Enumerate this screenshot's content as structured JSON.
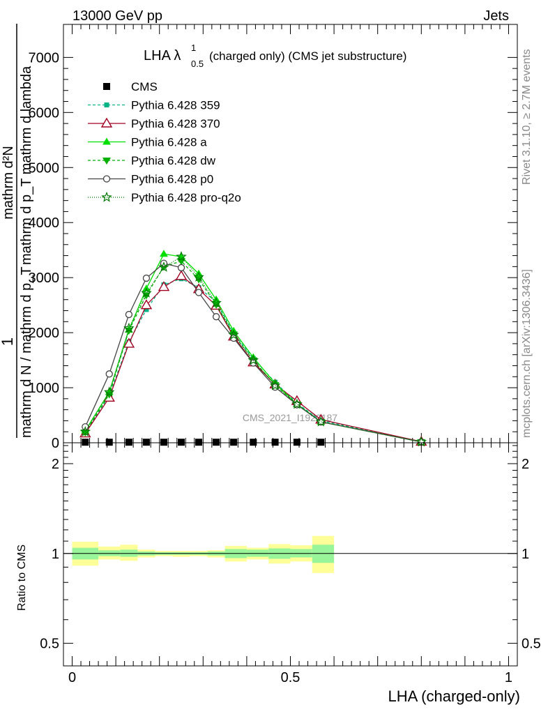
{
  "header": {
    "left": "13000 GeV pp",
    "right": "Jets"
  },
  "side": {
    "rivet": "Rivet 3.1.10, ≥ 2.7M events",
    "site": "mcplots.cern.ch [arXiv:1306.3436]"
  },
  "watermark": "CMS_2021_I1920187",
  "colors": {
    "cms": "#000000",
    "p359": "#00b386",
    "p370": "#a00020",
    "a": "#00e000",
    "dw": "#00b000",
    "p0": "#444444",
    "proq2o": "#007700",
    "band_stat": "#99f599",
    "band_tot": "#ffff99"
  },
  "chart_data": [
    {
      "type": "line",
      "title": "LHA λ",
      "title_sup": "1",
      "title_sub": "0.5",
      "title_rest": "(charged only) (CMS jet substructure)",
      "ylabel_num": "1",
      "ylabel_den": "mathrm d N / mathrm d p_T",
      "ylabel_frac_num": "mathrm d²N",
      "ylabel_frac_den": "mathrm d p_T mathrm d lambda",
      "ytick_labels": [
        "0",
        "1000",
        "2000",
        "3000",
        "4000",
        "5000",
        "6000",
        "7000"
      ],
      "ylim": [
        0,
        7600
      ],
      "xlim": [
        -0.02,
        1.02
      ],
      "legend_position": "top-left",
      "x": [
        0.03,
        0.085,
        0.13,
        0.17,
        0.21,
        0.25,
        0.29,
        0.33,
        0.37,
        0.415,
        0.465,
        0.515,
        0.57,
        0.8
      ],
      "series": [
        {
          "name": "CMS",
          "key": "cms",
          "marker": "square",
          "dash": "",
          "values": [
            10,
            10,
            10,
            10,
            10,
            10,
            10,
            10,
            10,
            10,
            10,
            10,
            10,
            null
          ]
        },
        {
          "name": "Pythia 6.428 359",
          "key": "p359",
          "marker": "smallsquare",
          "dash": "4,3",
          "values": [
            180,
            860,
            1830,
            2420,
            2870,
            2980,
            2820,
            2560,
            1990,
            1530,
            1100,
            720,
            400,
            20
          ]
        },
        {
          "name": "Pythia 6.428 370",
          "key": "p370",
          "marker": "opentriangle",
          "dash": "",
          "values": [
            170,
            820,
            1800,
            2500,
            2830,
            3030,
            2790,
            2490,
            1930,
            1460,
            1060,
            760,
            420,
            20
          ]
        },
        {
          "name": "Pythia 6.428 a",
          "key": "a",
          "marker": "triangle",
          "dash": "",
          "values": [
            220,
            920,
            2050,
            2800,
            3430,
            3380,
            3070,
            2600,
            2030,
            1550,
            1080,
            700,
            380,
            15
          ]
        },
        {
          "name": "Pythia 6.428 dw",
          "key": "dw",
          "marker": "triangledown",
          "dash": "4,3",
          "values": [
            190,
            880,
            2040,
            2680,
            3200,
            3300,
            2970,
            2510,
            1970,
            1500,
            1050,
            700,
            380,
            15
          ]
        },
        {
          "name": "Pythia 6.428 p0",
          "key": "p0",
          "marker": "opencircle",
          "dash": "",
          "values": [
            290,
            1250,
            2330,
            2990,
            3260,
            3180,
            2730,
            2290,
            1900,
            1450,
            1010,
            690,
            380,
            15
          ]
        },
        {
          "name": "Pythia 6.428 pro-q2o",
          "key": "proq2o",
          "marker": "star",
          "dash": "1,2",
          "values": [
            200,
            920,
            2080,
            2720,
            3190,
            3380,
            3010,
            2540,
            1960,
            1500,
            1040,
            700,
            380,
            15
          ]
        }
      ]
    },
    {
      "type": "area",
      "ylabel": "Ratio to CMS",
      "ytick_labels": [
        "0.5",
        "1",
        "2"
      ],
      "xtick_labels": [
        "0",
        "0.5",
        "1"
      ],
      "xlabel": "LHA (charged-only)",
      "log_y": true,
      "ylim": [
        0.42,
        2.35
      ],
      "xlim": [
        -0.02,
        1.02
      ],
      "bins": [
        {
          "x0": 0.0,
          "x1": 0.06,
          "stat": [
            0.955,
            1.045
          ],
          "tot": [
            0.91,
            1.095
          ]
        },
        {
          "x0": 0.06,
          "x1": 0.11,
          "stat": [
            0.98,
            1.025
          ],
          "tot": [
            0.955,
            1.055
          ]
        },
        {
          "x0": 0.11,
          "x1": 0.15,
          "stat": [
            0.975,
            1.03
          ],
          "tot": [
            0.945,
            1.07
          ]
        },
        {
          "x0": 0.15,
          "x1": 0.19,
          "stat": [
            0.985,
            1.015
          ],
          "tot": [
            0.97,
            1.03
          ]
        },
        {
          "x0": 0.19,
          "x1": 0.23,
          "stat": [
            0.99,
            1.01
          ],
          "tot": [
            0.98,
            1.02
          ]
        },
        {
          "x0": 0.23,
          "x1": 0.27,
          "stat": [
            0.99,
            1.01
          ],
          "tot": [
            0.975,
            1.02
          ]
        },
        {
          "x0": 0.27,
          "x1": 0.31,
          "stat": [
            0.99,
            1.01
          ],
          "tot": [
            0.98,
            1.02
          ]
        },
        {
          "x0": 0.31,
          "x1": 0.35,
          "stat": [
            0.985,
            1.015
          ],
          "tot": [
            0.97,
            1.025
          ]
        },
        {
          "x0": 0.35,
          "x1": 0.4,
          "stat": [
            0.965,
            1.035
          ],
          "tot": [
            0.94,
            1.06
          ]
        },
        {
          "x0": 0.4,
          "x1": 0.45,
          "stat": [
            0.975,
            1.03
          ],
          "tot": [
            0.955,
            1.045
          ]
        },
        {
          "x0": 0.45,
          "x1": 0.5,
          "stat": [
            0.96,
            1.04
          ],
          "tot": [
            0.925,
            1.075
          ]
        },
        {
          "x0": 0.5,
          "x1": 0.55,
          "stat": [
            0.97,
            1.035
          ],
          "tot": [
            0.94,
            1.065
          ]
        },
        {
          "x0": 0.55,
          "x1": 0.6,
          "stat": [
            0.93,
            1.07
          ],
          "tot": [
            0.86,
            1.145
          ]
        }
      ]
    }
  ]
}
